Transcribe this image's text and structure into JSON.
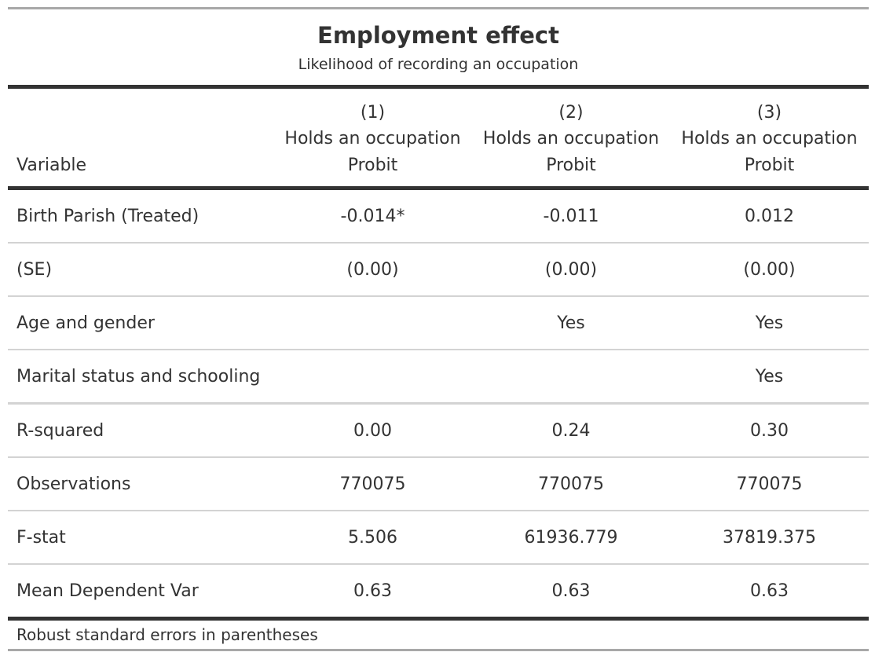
{
  "title": "Employment effect",
  "subtitle": "Likelihood of recording an occupation",
  "header": {
    "variable_label": "Variable",
    "columns": [
      {
        "number": "(1)",
        "dependent": "Holds an occupation",
        "model": "Probit"
      },
      {
        "number": "(2)",
        "dependent": "Holds an occupation",
        "model": "Probit"
      },
      {
        "number": "(3)",
        "dependent": "Holds an occupation",
        "model": "Probit"
      }
    ]
  },
  "rows": [
    {
      "label": "Birth Parish (Treated)",
      "values": [
        "-0.014*",
        "-0.011",
        "0.012"
      ]
    },
    {
      "label": "(SE)",
      "values": [
        "(0.00)",
        "(0.00)",
        "(0.00)"
      ]
    },
    {
      "label": "Age and gender",
      "values": [
        "",
        "Yes",
        "Yes"
      ]
    },
    {
      "label": "Marital status and schooling",
      "values": [
        "",
        "",
        "Yes"
      ]
    },
    {
      "label": "R-squared",
      "values": [
        "0.00",
        "0.24",
        "0.30"
      ]
    },
    {
      "label": "Observations",
      "values": [
        "770075",
        "770075",
        "770075"
      ]
    },
    {
      "label": "F-stat",
      "values": [
        "5.506",
        "61936.779",
        "37819.375"
      ]
    },
    {
      "label": "Mean Dependent Var",
      "values": [
        "0.63",
        "0.63",
        "0.63"
      ]
    }
  ],
  "footnote": "Robust standard errors in parentheses"
}
